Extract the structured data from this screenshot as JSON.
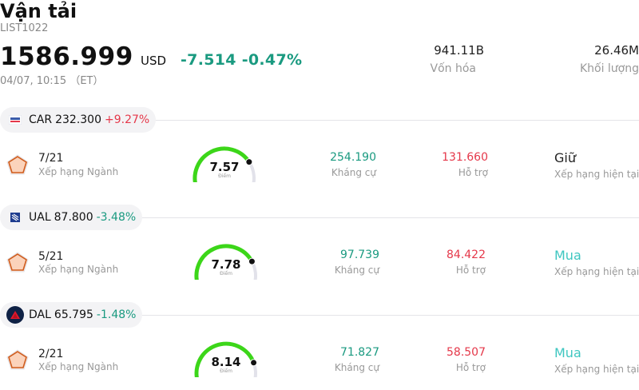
{
  "header": {
    "title": "Vận tải",
    "code": "LIST1022",
    "price": "1586.999",
    "currency": "USD",
    "change": "-7.514 -0.47%",
    "datetime": "04/07, 10:15 （ET）"
  },
  "stats": {
    "market_cap_value": "941.11B",
    "market_cap_label": "Vốn hóa",
    "volume_value": "26.46M",
    "volume_label": "Khối lượng"
  },
  "labels": {
    "industry_rank": "Xếp hạng Ngành",
    "resistance": "Kháng cự",
    "support": "Hỗ trợ",
    "current_rating": "Xếp hạng hiện tại",
    "score": "Điểm"
  },
  "colors": {
    "up": "#e5384a",
    "down": "#1a9a80",
    "gauge_active": "#3cd619",
    "gauge_track": "#e2e2ea",
    "buy": "#3ec6c0"
  },
  "stocks": [
    {
      "symbol": "CAR",
      "price": "232.300",
      "change": "+9.27%",
      "logo_icon": "avis-logo-icon",
      "rank": "7/21",
      "score": "7.57",
      "score_fraction": 0.757,
      "resistance": "254.190",
      "support": "131.660",
      "rating": "Giữ"
    },
    {
      "symbol": "UAL",
      "price": "87.800",
      "change": "-3.48%",
      "logo_icon": "united-airlines-logo-icon",
      "rank": "5/21",
      "score": "7.78",
      "score_fraction": 0.778,
      "resistance": "97.739",
      "support": "84.422",
      "rating": "Mua"
    },
    {
      "symbol": "DAL",
      "price": "65.795",
      "change": "-1.48%",
      "logo_icon": "delta-logo-icon",
      "rank": "2/21",
      "score": "8.14",
      "score_fraction": 0.814,
      "resistance": "71.827",
      "support": "58.507",
      "rating": "Mua"
    }
  ]
}
